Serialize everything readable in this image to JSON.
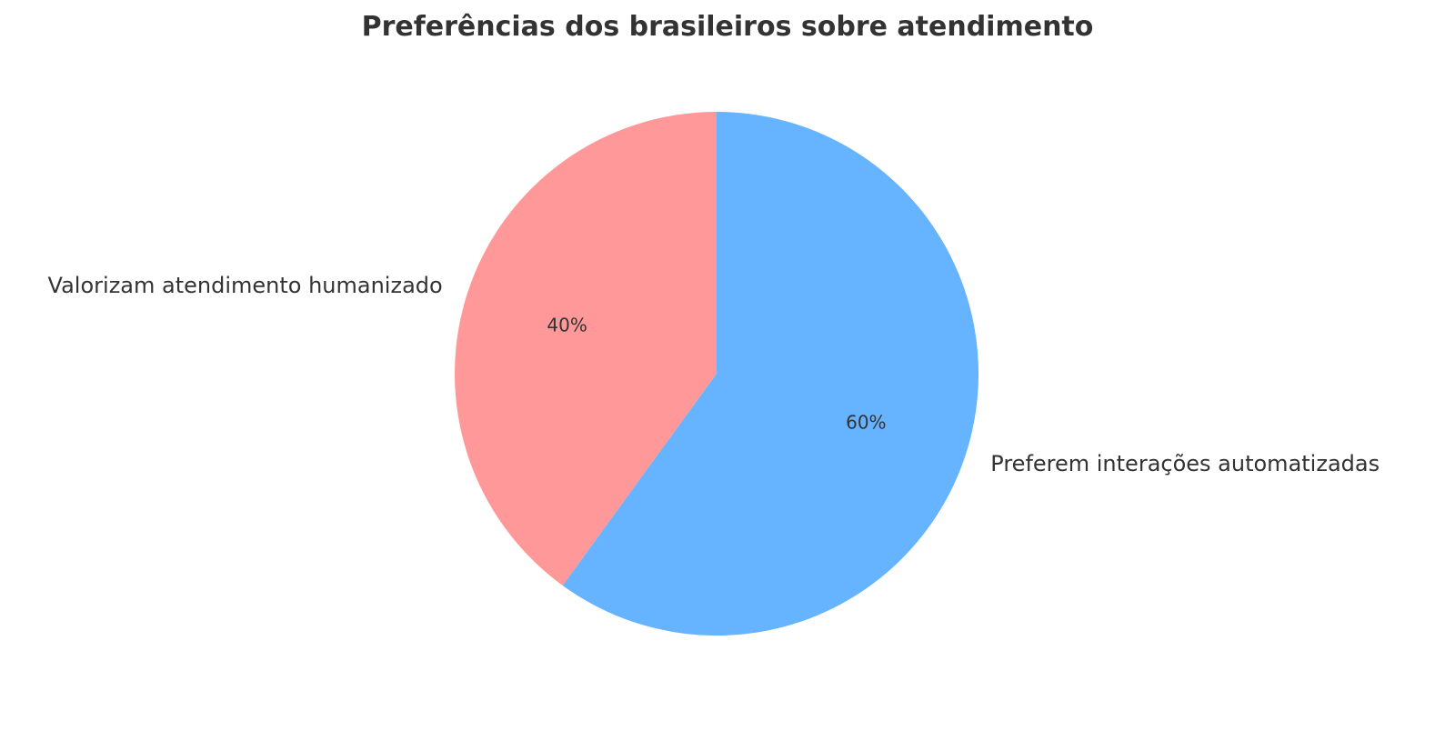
{
  "chart_data": {
    "type": "pie",
    "title": "Preferências dos brasileiros sobre atendimento",
    "categories": [
      "Valorizam atendimento humanizado",
      "Preferem interações automatizadas"
    ],
    "values": [
      40,
      60
    ],
    "percent_labels": [
      "40%",
      "60%"
    ],
    "colors": [
      "#ff9999",
      "#66b3ff"
    ],
    "start_angle_deg": 90,
    "direction": "counterclockwise",
    "legend": "none"
  }
}
